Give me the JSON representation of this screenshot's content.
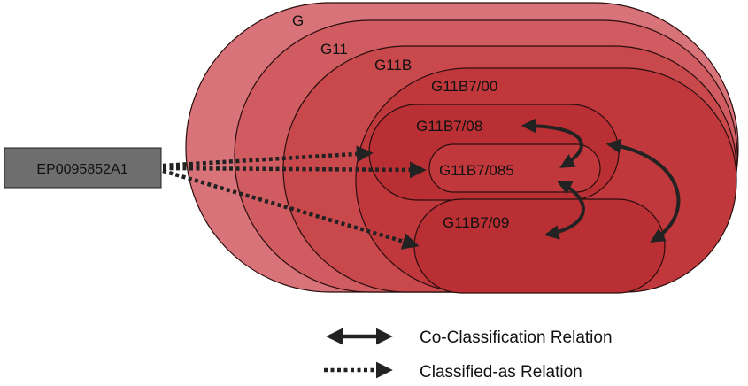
{
  "document": {
    "label": "EP0095852A1",
    "box_color": "#6e6e6e"
  },
  "classes": [
    {
      "label": "G",
      "fill": "#d9737a"
    },
    {
      "label": "G11",
      "fill": "#d05c61"
    },
    {
      "label": "G11B",
      "fill": "#c8484c"
    },
    {
      "label": "G11B7/00",
      "fill": "#c0383c"
    },
    {
      "label": "G11B7/08",
      "fill": "#b92f33"
    },
    {
      "label": "G11B7/085",
      "fill": "#c0383c"
    },
    {
      "label": "G11B7/09",
      "fill": "#b92f33"
    }
  ],
  "legend": {
    "co_classification": "Co-Classification Relation",
    "classified_as": "Classified-as Relation"
  },
  "relation_color": "#222222"
}
